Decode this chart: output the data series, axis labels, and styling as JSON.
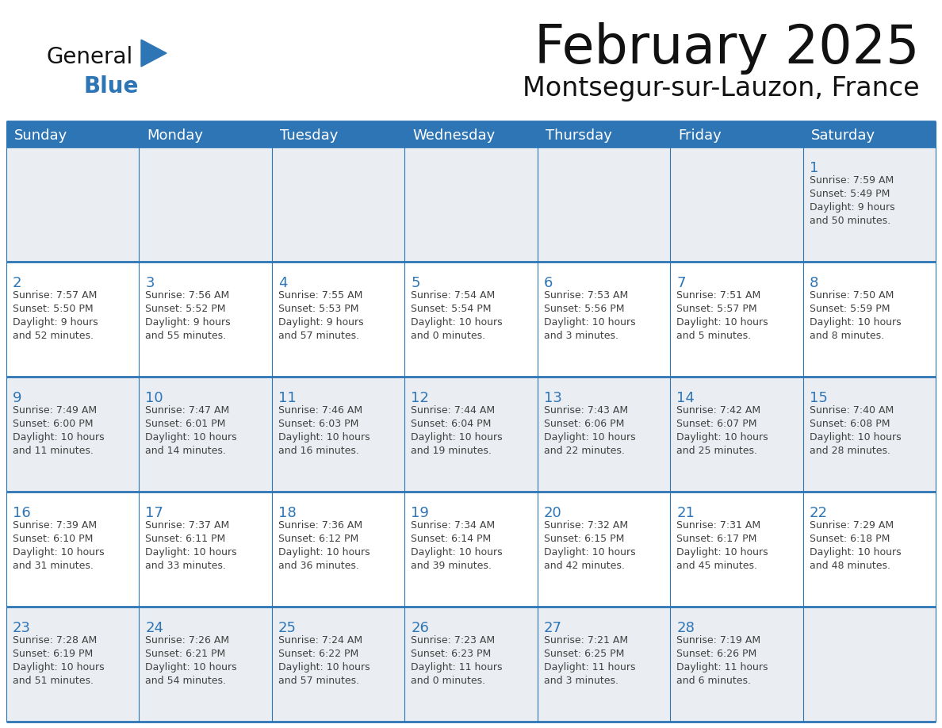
{
  "title": "February 2025",
  "subtitle": "Montsegur-sur-Lauzon, France",
  "header_color": "#2E75B6",
  "header_text_color": "#FFFFFF",
  "row_bg_light": "#EAEEF2",
  "row_bg_white": "#FFFFFF",
  "border_color": "#2E75B6",
  "day_number_color": "#2E75B6",
  "text_color": "#404040",
  "days_of_week": [
    "Sunday",
    "Monday",
    "Tuesday",
    "Wednesday",
    "Thursday",
    "Friday",
    "Saturday"
  ],
  "weeks": [
    [
      {
        "day": 0,
        "info": ""
      },
      {
        "day": 0,
        "info": ""
      },
      {
        "day": 0,
        "info": ""
      },
      {
        "day": 0,
        "info": ""
      },
      {
        "day": 0,
        "info": ""
      },
      {
        "day": 0,
        "info": ""
      },
      {
        "day": 1,
        "info": "Sunrise: 7:59 AM\nSunset: 5:49 PM\nDaylight: 9 hours\nand 50 minutes."
      }
    ],
    [
      {
        "day": 2,
        "info": "Sunrise: 7:57 AM\nSunset: 5:50 PM\nDaylight: 9 hours\nand 52 minutes."
      },
      {
        "day": 3,
        "info": "Sunrise: 7:56 AM\nSunset: 5:52 PM\nDaylight: 9 hours\nand 55 minutes."
      },
      {
        "day": 4,
        "info": "Sunrise: 7:55 AM\nSunset: 5:53 PM\nDaylight: 9 hours\nand 57 minutes."
      },
      {
        "day": 5,
        "info": "Sunrise: 7:54 AM\nSunset: 5:54 PM\nDaylight: 10 hours\nand 0 minutes."
      },
      {
        "day": 6,
        "info": "Sunrise: 7:53 AM\nSunset: 5:56 PM\nDaylight: 10 hours\nand 3 minutes."
      },
      {
        "day": 7,
        "info": "Sunrise: 7:51 AM\nSunset: 5:57 PM\nDaylight: 10 hours\nand 5 minutes."
      },
      {
        "day": 8,
        "info": "Sunrise: 7:50 AM\nSunset: 5:59 PM\nDaylight: 10 hours\nand 8 minutes."
      }
    ],
    [
      {
        "day": 9,
        "info": "Sunrise: 7:49 AM\nSunset: 6:00 PM\nDaylight: 10 hours\nand 11 minutes."
      },
      {
        "day": 10,
        "info": "Sunrise: 7:47 AM\nSunset: 6:01 PM\nDaylight: 10 hours\nand 14 minutes."
      },
      {
        "day": 11,
        "info": "Sunrise: 7:46 AM\nSunset: 6:03 PM\nDaylight: 10 hours\nand 16 minutes."
      },
      {
        "day": 12,
        "info": "Sunrise: 7:44 AM\nSunset: 6:04 PM\nDaylight: 10 hours\nand 19 minutes."
      },
      {
        "day": 13,
        "info": "Sunrise: 7:43 AM\nSunset: 6:06 PM\nDaylight: 10 hours\nand 22 minutes."
      },
      {
        "day": 14,
        "info": "Sunrise: 7:42 AM\nSunset: 6:07 PM\nDaylight: 10 hours\nand 25 minutes."
      },
      {
        "day": 15,
        "info": "Sunrise: 7:40 AM\nSunset: 6:08 PM\nDaylight: 10 hours\nand 28 minutes."
      }
    ],
    [
      {
        "day": 16,
        "info": "Sunrise: 7:39 AM\nSunset: 6:10 PM\nDaylight: 10 hours\nand 31 minutes."
      },
      {
        "day": 17,
        "info": "Sunrise: 7:37 AM\nSunset: 6:11 PM\nDaylight: 10 hours\nand 33 minutes."
      },
      {
        "day": 18,
        "info": "Sunrise: 7:36 AM\nSunset: 6:12 PM\nDaylight: 10 hours\nand 36 minutes."
      },
      {
        "day": 19,
        "info": "Sunrise: 7:34 AM\nSunset: 6:14 PM\nDaylight: 10 hours\nand 39 minutes."
      },
      {
        "day": 20,
        "info": "Sunrise: 7:32 AM\nSunset: 6:15 PM\nDaylight: 10 hours\nand 42 minutes."
      },
      {
        "day": 21,
        "info": "Sunrise: 7:31 AM\nSunset: 6:17 PM\nDaylight: 10 hours\nand 45 minutes."
      },
      {
        "day": 22,
        "info": "Sunrise: 7:29 AM\nSunset: 6:18 PM\nDaylight: 10 hours\nand 48 minutes."
      }
    ],
    [
      {
        "day": 23,
        "info": "Sunrise: 7:28 AM\nSunset: 6:19 PM\nDaylight: 10 hours\nand 51 minutes."
      },
      {
        "day": 24,
        "info": "Sunrise: 7:26 AM\nSunset: 6:21 PM\nDaylight: 10 hours\nand 54 minutes."
      },
      {
        "day": 25,
        "info": "Sunrise: 7:24 AM\nSunset: 6:22 PM\nDaylight: 10 hours\nand 57 minutes."
      },
      {
        "day": 26,
        "info": "Sunrise: 7:23 AM\nSunset: 6:23 PM\nDaylight: 11 hours\nand 0 minutes."
      },
      {
        "day": 27,
        "info": "Sunrise: 7:21 AM\nSunset: 6:25 PM\nDaylight: 11 hours\nand 3 minutes."
      },
      {
        "day": 28,
        "info": "Sunrise: 7:19 AM\nSunset: 6:26 PM\nDaylight: 11 hours\nand 6 minutes."
      },
      {
        "day": 0,
        "info": ""
      }
    ]
  ],
  "logo_general_color": "#111111",
  "logo_blue_color": "#2E75B6"
}
